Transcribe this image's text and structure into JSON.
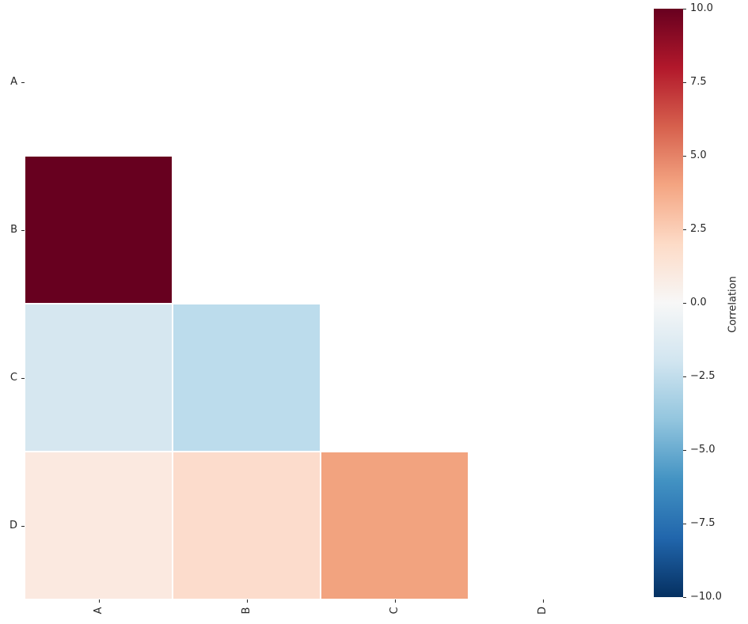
{
  "chart_data": {
    "type": "heatmap",
    "title": "",
    "rows": [
      "A",
      "B",
      "C",
      "D"
    ],
    "columns": [
      "A",
      "B",
      "C",
      "D"
    ],
    "mask": "upper-triangle-including-diagonal",
    "colormap": "RdBu_r",
    "vmin": -10,
    "vmax": 10,
    "values": [
      [
        null,
        null,
        null,
        null
      ],
      [
        10.0,
        null,
        null,
        null
      ],
      [
        -1.5,
        -3.0,
        null,
        null
      ],
      [
        1.0,
        2.0,
        4.5,
        null
      ]
    ],
    "cell_colors": [
      [
        null,
        null,
        null,
        null
      ],
      [
        "#67001f",
        null,
        null,
        null
      ],
      [
        "#d6e7f0",
        "#bcdcec",
        null,
        null
      ],
      [
        "#fbe9e0",
        "#fcdccc",
        "#f2a37f",
        null
      ]
    ],
    "colorbar": {
      "label": "Correlation",
      "ticks": [
        "10.0",
        "7.5",
        "5.0",
        "2.5",
        "0.0",
        "−2.5",
        "−5.0",
        "−7.5",
        "−10.0"
      ],
      "gradient_stops": [
        "#67001f",
        "#b2182b",
        "#d6604d",
        "#f4a582",
        "#fddbc7",
        "#f7f7f7",
        "#d1e5f0",
        "#92c5de",
        "#4393c3",
        "#2166ac",
        "#053061"
      ]
    }
  }
}
